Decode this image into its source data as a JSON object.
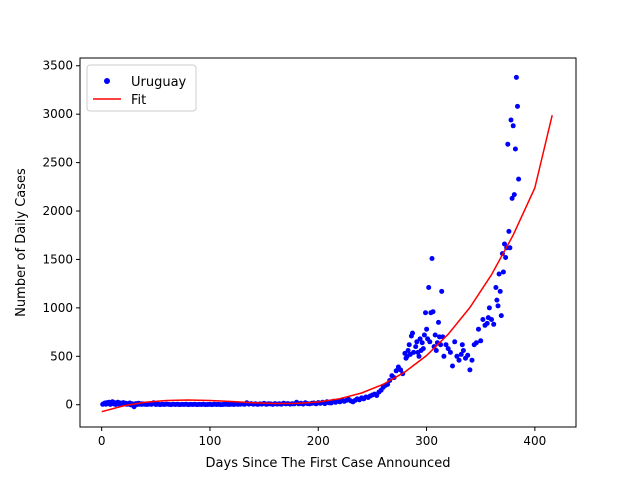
{
  "chart_data": {
    "type": "scatter",
    "title": "",
    "xlabel": "Days Since The First Case Announced",
    "ylabel": "Number of Daily Cases",
    "xlim": [
      -20,
      438
    ],
    "ylim": [
      -230,
      3580
    ],
    "xticks": [
      0,
      100,
      200,
      300,
      400
    ],
    "yticks": [
      0,
      500,
      1000,
      1500,
      2000,
      2500,
      3000,
      3500
    ],
    "grid": false,
    "legend_position": "top-left",
    "series": [
      {
        "name": "Uruguay",
        "kind": "scatter",
        "color": "#0000ff",
        "points": [
          [
            1,
            4
          ],
          [
            2,
            10
          ],
          [
            3,
            18
          ],
          [
            4,
            5
          ],
          [
            5,
            22
          ],
          [
            6,
            12
          ],
          [
            7,
            25
          ],
          [
            8,
            3
          ],
          [
            9,
            15
          ],
          [
            10,
            30
          ],
          [
            11,
            8
          ],
          [
            12,
            20
          ],
          [
            13,
            2
          ],
          [
            14,
            14
          ],
          [
            15,
            26
          ],
          [
            16,
            6
          ],
          [
            17,
            18
          ],
          [
            18,
            10
          ],
          [
            19,
            3
          ],
          [
            20,
            22
          ],
          [
            21,
            8
          ],
          [
            22,
            15
          ],
          [
            23,
            4
          ],
          [
            24,
            12
          ],
          [
            25,
            6
          ],
          [
            26,
            18
          ],
          [
            27,
            -2
          ],
          [
            28,
            10
          ],
          [
            29,
            5
          ],
          [
            30,
            -20
          ],
          [
            31,
            8
          ],
          [
            32,
            12
          ],
          [
            33,
            2
          ],
          [
            34,
            15
          ],
          [
            35,
            5
          ],
          [
            36,
            10
          ],
          [
            37,
            3
          ],
          [
            38,
            8
          ],
          [
            39,
            6
          ],
          [
            40,
            4
          ],
          [
            42,
            2
          ],
          [
            44,
            6
          ],
          [
            46,
            3
          ],
          [
            48,
            20
          ],
          [
            50,
            2
          ],
          [
            52,
            5
          ],
          [
            54,
            1
          ],
          [
            56,
            4
          ],
          [
            58,
            2
          ],
          [
            60,
            6
          ],
          [
            62,
            3
          ],
          [
            64,
            1
          ],
          [
            66,
            5
          ],
          [
            68,
            2
          ],
          [
            70,
            4
          ],
          [
            72,
            1
          ],
          [
            74,
            3
          ],
          [
            76,
            2
          ],
          [
            78,
            5
          ],
          [
            80,
            1
          ],
          [
            82,
            3
          ],
          [
            84,
            2
          ],
          [
            86,
            4
          ],
          [
            88,
            1
          ],
          [
            90,
            3
          ],
          [
            92,
            2
          ],
          [
            94,
            4
          ],
          [
            96,
            1
          ],
          [
            98,
            2
          ],
          [
            100,
            3
          ],
          [
            102,
            1
          ],
          [
            104,
            4
          ],
          [
            106,
            2
          ],
          [
            108,
            3
          ],
          [
            110,
            1
          ],
          [
            112,
            2
          ],
          [
            114,
            4
          ],
          [
            116,
            3
          ],
          [
            118,
            2
          ],
          [
            120,
            5
          ],
          [
            122,
            2
          ],
          [
            124,
            6
          ],
          [
            126,
            3
          ],
          [
            128,
            5
          ],
          [
            130,
            8
          ],
          [
            132,
            4
          ],
          [
            134,
            20
          ],
          [
            136,
            6
          ],
          [
            138,
            12
          ],
          [
            140,
            5
          ],
          [
            142,
            10
          ],
          [
            144,
            3
          ],
          [
            146,
            8
          ],
          [
            148,
            6
          ],
          [
            150,
            14
          ],
          [
            152,
            4
          ],
          [
            154,
            10
          ],
          [
            156,
            8
          ],
          [
            158,
            3
          ],
          [
            160,
            12
          ],
          [
            162,
            6
          ],
          [
            164,
            10
          ],
          [
            166,
            5
          ],
          [
            168,
            15
          ],
          [
            170,
            8
          ],
          [
            172,
            12
          ],
          [
            174,
            6
          ],
          [
            176,
            10
          ],
          [
            178,
            8
          ],
          [
            180,
            25
          ],
          [
            182,
            10
          ],
          [
            184,
            15
          ],
          [
            186,
            6
          ],
          [
            188,
            20
          ],
          [
            190,
            12
          ],
          [
            192,
            8
          ],
          [
            194,
            15
          ],
          [
            196,
            18
          ],
          [
            198,
            10
          ],
          [
            200,
            22
          ],
          [
            202,
            15
          ],
          [
            204,
            25
          ],
          [
            206,
            12
          ],
          [
            208,
            30
          ],
          [
            210,
            20
          ],
          [
            212,
            18
          ],
          [
            214,
            35
          ],
          [
            216,
            25
          ],
          [
            218,
            40
          ],
          [
            220,
            30
          ],
          [
            222,
            50
          ],
          [
            224,
            35
          ],
          [
            226,
            45
          ],
          [
            228,
            55
          ],
          [
            230,
            40
          ],
          [
            232,
            30
          ],
          [
            234,
            45
          ],
          [
            236,
            60
          ],
          [
            238,
            50
          ],
          [
            240,
            70
          ],
          [
            242,
            60
          ],
          [
            244,
            80
          ],
          [
            246,
            75
          ],
          [
            248,
            90
          ],
          [
            250,
            100
          ],
          [
            252,
            110
          ],
          [
            254,
            95
          ],
          [
            256,
            130
          ],
          [
            258,
            150
          ],
          [
            260,
            180
          ],
          [
            262,
            200
          ],
          [
            264,
            210
          ],
          [
            266,
            250
          ],
          [
            268,
            300
          ],
          [
            270,
            280
          ],
          [
            272,
            350
          ],
          [
            274,
            390
          ],
          [
            276,
            360
          ],
          [
            278,
            320
          ],
          [
            280,
            530
          ],
          [
            281,
            480
          ],
          [
            282,
            500
          ],
          [
            283,
            560
          ],
          [
            284,
            620
          ],
          [
            285,
            520
          ],
          [
            286,
            710
          ],
          [
            287,
            740
          ],
          [
            288,
            540
          ],
          [
            290,
            600
          ],
          [
            291,
            650
          ],
          [
            292,
            540
          ],
          [
            293,
            500
          ],
          [
            294,
            680
          ],
          [
            295,
            560
          ],
          [
            296,
            640
          ],
          [
            297,
            580
          ],
          [
            298,
            720
          ],
          [
            299,
            950
          ],
          [
            300,
            780
          ],
          [
            301,
            680
          ],
          [
            302,
            1210
          ],
          [
            303,
            650
          ],
          [
            304,
            950
          ],
          [
            305,
            1510
          ],
          [
            306,
            960
          ],
          [
            307,
            600
          ],
          [
            308,
            720
          ],
          [
            309,
            560
          ],
          [
            310,
            640
          ],
          [
            311,
            850
          ],
          [
            312,
            700
          ],
          [
            313,
            620
          ],
          [
            314,
            1170
          ],
          [
            315,
            700
          ],
          [
            316,
            500
          ],
          [
            318,
            620
          ],
          [
            320,
            580
          ],
          [
            322,
            540
          ],
          [
            324,
            400
          ],
          [
            326,
            650
          ],
          [
            328,
            500
          ],
          [
            330,
            460
          ],
          [
            332,
            520
          ],
          [
            333,
            620
          ],
          [
            334,
            560
          ],
          [
            336,
            480
          ],
          [
            338,
            510
          ],
          [
            340,
            360
          ],
          [
            342,
            460
          ],
          [
            344,
            620
          ],
          [
            346,
            640
          ],
          [
            348,
            780
          ],
          [
            350,
            660
          ],
          [
            352,
            880
          ],
          [
            354,
            820
          ],
          [
            356,
            840
          ],
          [
            357,
            900
          ],
          [
            358,
            1000
          ],
          [
            360,
            880
          ],
          [
            362,
            830
          ],
          [
            364,
            1210
          ],
          [
            365,
            1080
          ],
          [
            366,
            1020
          ],
          [
            367,
            1350
          ],
          [
            368,
            1170
          ],
          [
            369,
            920
          ],
          [
            370,
            1560
          ],
          [
            371,
            1370
          ],
          [
            372,
            1660
          ],
          [
            373,
            1520
          ],
          [
            374,
            1620
          ],
          [
            375,
            2690
          ],
          [
            376,
            1790
          ],
          [
            377,
            1620
          ],
          [
            378,
            2940
          ],
          [
            379,
            2130
          ],
          [
            380,
            2880
          ],
          [
            381,
            2170
          ],
          [
            382,
            2640
          ],
          [
            383,
            3380
          ],
          [
            384,
            3080
          ],
          [
            385,
            2330
          ]
        ]
      },
      {
        "name": "Fit",
        "kind": "line",
        "color": "#ff0000",
        "points": [
          [
            0,
            -72
          ],
          [
            20,
            -12
          ],
          [
            40,
            25
          ],
          [
            60,
            44
          ],
          [
            80,
            49
          ],
          [
            100,
            44
          ],
          [
            120,
            33
          ],
          [
            140,
            21
          ],
          [
            160,
            13
          ],
          [
            180,
            14
          ],
          [
            200,
            28
          ],
          [
            220,
            62
          ],
          [
            240,
            121
          ],
          [
            260,
            211
          ],
          [
            280,
            338
          ],
          [
            300,
            508
          ],
          [
            320,
            728
          ],
          [
            340,
            1004
          ],
          [
            360,
            1343
          ],
          [
            380,
            1752
          ],
          [
            400,
            2238
          ],
          [
            416,
            2989
          ]
        ]
      }
    ]
  }
}
